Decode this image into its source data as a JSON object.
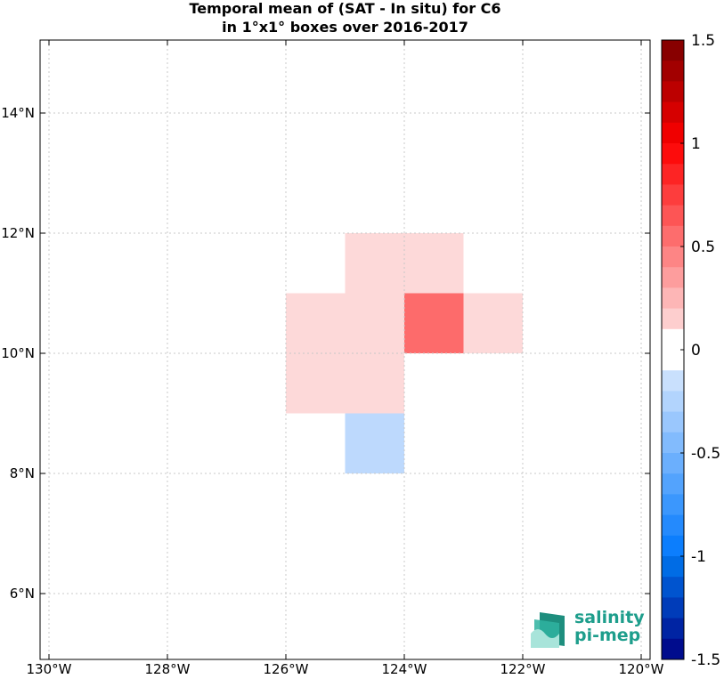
{
  "title": {
    "line1": "Temporal mean of (SAT - In situ) for C6",
    "line2": "in 1°x1° boxes over 2016-2017"
  },
  "map": {
    "lon_range": [
      -130,
      -120
    ],
    "lat_range": [
      5,
      15.2
    ],
    "lon_ticks": [
      {
        "value": -130,
        "label": "130°W"
      },
      {
        "value": -128,
        "label": "128°W"
      },
      {
        "value": -126,
        "label": "126°W"
      },
      {
        "value": -124,
        "label": "124°W"
      },
      {
        "value": -122,
        "label": "122°W"
      },
      {
        "value": -120,
        "label": "120°W"
      }
    ],
    "lat_ticks": [
      {
        "value": 6,
        "label": "6°N"
      },
      {
        "value": 8,
        "label": "8°N"
      },
      {
        "value": 10,
        "label": "10°N"
      },
      {
        "value": 12,
        "label": "12°N"
      },
      {
        "value": 14,
        "label": "14°N"
      }
    ],
    "grid": true,
    "cells": [
      {
        "lon0": -125,
        "lat0": 11,
        "value": 0.15,
        "color": "#fdd9d9"
      },
      {
        "lon0": -124,
        "lat0": 11,
        "value": 0.15,
        "color": "#fdd9d9"
      },
      {
        "lon0": -126,
        "lat0": 10,
        "value": 0.15,
        "color": "#fdd9d9"
      },
      {
        "lon0": -125,
        "lat0": 10,
        "value": 0.15,
        "color": "#fdd9d9"
      },
      {
        "lon0": -124,
        "lat0": 10,
        "value": 0.55,
        "color": "#fd6b6b"
      },
      {
        "lon0": -123,
        "lat0": 10,
        "value": 0.15,
        "color": "#fdd9d9"
      },
      {
        "lon0": -126,
        "lat0": 9,
        "value": 0.15,
        "color": "#fdd9d9"
      },
      {
        "lon0": -125,
        "lat0": 9,
        "value": 0.15,
        "color": "#fdd9d9"
      },
      {
        "lon0": -125,
        "lat0": 8,
        "value": -0.25,
        "color": "#bdd9fd"
      }
    ]
  },
  "colorbar": {
    "min": -1.5,
    "max": 1.5,
    "step": 0.1,
    "ticks": [
      {
        "value": 1.5,
        "label": "1.5"
      },
      {
        "value": 1,
        "label": "1"
      },
      {
        "value": 0.5,
        "label": "0.5"
      },
      {
        "value": 0,
        "label": "0"
      },
      {
        "value": -0.5,
        "label": "-0.5"
      },
      {
        "value": -1,
        "label": "-1"
      },
      {
        "value": -1.5,
        "label": "-1.5"
      }
    ]
  },
  "logo": {
    "line1": "salinity",
    "line2": "pi-mep"
  }
}
